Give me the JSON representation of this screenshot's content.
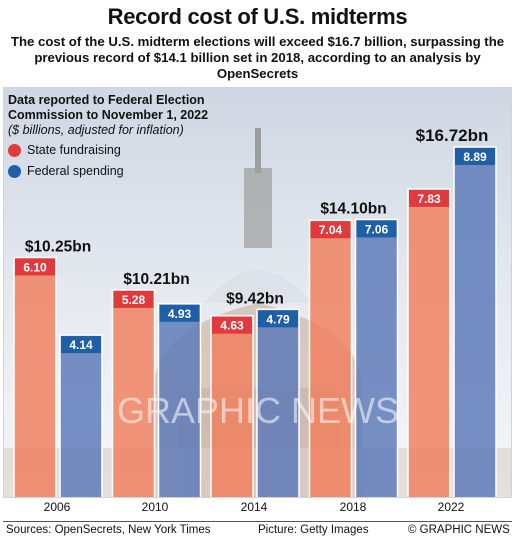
{
  "header": {
    "title": "Record cost of U.S. midterms",
    "subtitle": "The cost of the U.S. midterm elections will exceed $16.7 billion, surpassing the previous record of $14.1 billion set in 2018, according to an analysis by OpenSecrets"
  },
  "note": {
    "line1": "Data reported to Federal Election",
    "line2": "Commission to November 1, 2022",
    "unit": "($ billions, adjusted for inflation)"
  },
  "chart_data": {
    "type": "bar",
    "categories": [
      "2006",
      "2010",
      "2014",
      "2018",
      "2022"
    ],
    "series": [
      {
        "name": "State fundraising",
        "values": [
          6.1,
          5.28,
          4.63,
          7.04,
          7.83
        ],
        "labels": [
          "6.10",
          "5.28",
          "4.63",
          "7.04",
          "7.83"
        ],
        "color": "#e03a3e"
      },
      {
        "name": "Federal spending",
        "values": [
          4.14,
          4.93,
          4.79,
          7.06,
          8.89
        ],
        "labels": [
          "4.14",
          "4.93",
          "4.79",
          "7.06",
          "8.89"
        ],
        "color": "#1f5fa8"
      }
    ],
    "totals": [
      "$10.25bn",
      "$10.21bn",
      "$9.42bn",
      "$14.10bn",
      "$16.72bn"
    ],
    "ylim": [
      0,
      10
    ],
    "grid": false,
    "legend": "top-left",
    "bar_fill_colors": [
      "#f07e5c",
      "#5a78b8"
    ]
  },
  "footer": {
    "sources": "Sources: OpenSecrets, New York Times",
    "picture": "Picture: Getty Images",
    "credit": "© GRAPHIC NEWS"
  },
  "watermark": "GRAPHIC NEWS"
}
